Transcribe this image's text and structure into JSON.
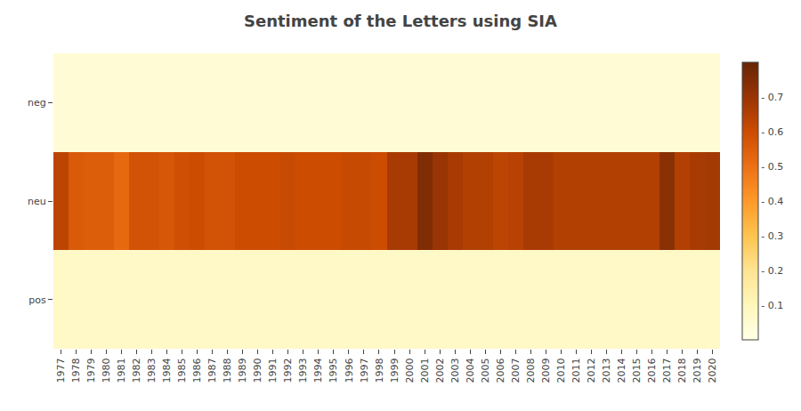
{
  "chart_data": {
    "type": "heatmap",
    "title": "Sentiment of the Letters using SIA",
    "categories": [
      "1977",
      "1978",
      "1979",
      "1980",
      "1981",
      "1982",
      "1983",
      "1984",
      "1985",
      "1986",
      "1987",
      "1988",
      "1989",
      "1990",
      "1991",
      "1992",
      "1993",
      "1994",
      "1995",
      "1996",
      "1997",
      "1998",
      "1999",
      "2000",
      "2001",
      "2002",
      "2003",
      "2004",
      "2005",
      "2006",
      "2007",
      "2008",
      "2009",
      "2010",
      "2011",
      "2012",
      "2013",
      "2014",
      "2015",
      "2016",
      "2017",
      "2018",
      "2019",
      "2020"
    ],
    "series": [
      {
        "name": "neg",
        "values": [
          0.04,
          0.04,
          0.04,
          0.04,
          0.04,
          0.04,
          0.04,
          0.04,
          0.04,
          0.04,
          0.04,
          0.04,
          0.04,
          0.04,
          0.04,
          0.04,
          0.04,
          0.04,
          0.04,
          0.04,
          0.04,
          0.04,
          0.04,
          0.04,
          0.04,
          0.04,
          0.04,
          0.04,
          0.04,
          0.04,
          0.04,
          0.04,
          0.04,
          0.04,
          0.04,
          0.04,
          0.04,
          0.04,
          0.04,
          0.04,
          0.04,
          0.04,
          0.04,
          0.04
        ]
      },
      {
        "name": "neu",
        "values": [
          0.63,
          0.56,
          0.55,
          0.55,
          0.52,
          0.58,
          0.58,
          0.57,
          0.59,
          0.6,
          0.58,
          0.58,
          0.6,
          0.6,
          0.6,
          0.61,
          0.6,
          0.6,
          0.6,
          0.61,
          0.61,
          0.6,
          0.67,
          0.67,
          0.75,
          0.7,
          0.67,
          0.65,
          0.65,
          0.63,
          0.64,
          0.67,
          0.67,
          0.65,
          0.65,
          0.65,
          0.65,
          0.65,
          0.65,
          0.65,
          0.73,
          0.65,
          0.67,
          0.68
        ]
      },
      {
        "name": "pos",
        "values": [
          0.07,
          0.07,
          0.07,
          0.07,
          0.07,
          0.07,
          0.07,
          0.07,
          0.07,
          0.07,
          0.07,
          0.07,
          0.07,
          0.07,
          0.07,
          0.07,
          0.07,
          0.07,
          0.07,
          0.07,
          0.07,
          0.07,
          0.07,
          0.07,
          0.07,
          0.07,
          0.07,
          0.07,
          0.07,
          0.07,
          0.07,
          0.07,
          0.07,
          0.07,
          0.07,
          0.07,
          0.07,
          0.07,
          0.07,
          0.07,
          0.07,
          0.07,
          0.07,
          0.07
        ]
      }
    ],
    "zlim": [
      0.0,
      0.8
    ],
    "zticks": [
      {
        "value": 0.1,
        "label": "- 0.1"
      },
      {
        "value": 0.2,
        "label": "- 0.2"
      },
      {
        "value": 0.3,
        "label": "- 0.3"
      },
      {
        "value": 0.4,
        "label": "- 0.4"
      },
      {
        "value": 0.5,
        "label": "- 0.5"
      },
      {
        "value": 0.6,
        "label": "- 0.6"
      },
      {
        "value": 0.7,
        "label": "- 0.7"
      }
    ],
    "grid": false
  }
}
